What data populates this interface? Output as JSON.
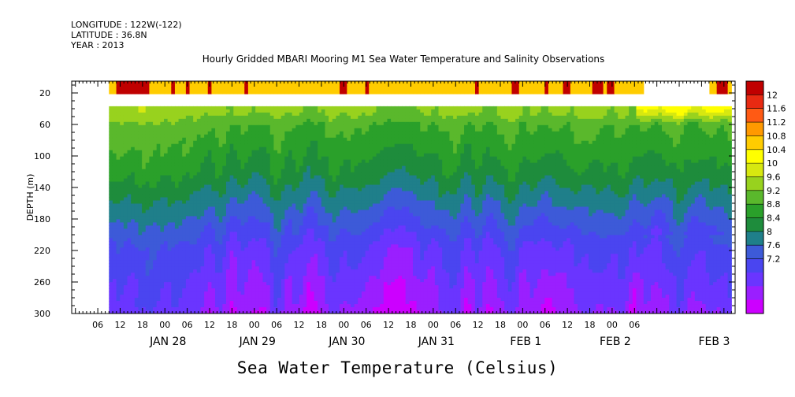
{
  "header": {
    "longitude": "LONGITUDE : 122W(-122)",
    "latitude": "LATITUDE : 36.8N",
    "year": "YEAR : 2013"
  },
  "chart_title": "Hourly Gridded MBARI Mooring M1 Sea Water Temperature and Salinity Observations",
  "footer_label": "Sea Water Temperature (Celsius)",
  "chart_data": {
    "type": "heatmap",
    "title": "Hourly Gridded MBARI Mooring M1 Sea Water Temperature and Salinity Observations",
    "xlabel": "",
    "ylabel": "DEPTH (m)",
    "ylim": [
      300,
      5
    ],
    "y_reversed": true,
    "y_ticks": [
      20,
      60,
      100,
      140,
      180,
      220,
      260,
      300
    ],
    "x_time_range": [
      "2013-01-27T00:00",
      "2013-02-03T09:00"
    ],
    "x_hour_ticks": [
      "06",
      "12",
      "18",
      "00",
      "06",
      "12",
      "18",
      "00",
      "06",
      "12",
      "18",
      "00",
      "06",
      "12",
      "18",
      "00",
      "06",
      "12",
      "18",
      "00",
      "06",
      "12",
      "18",
      "00",
      "06"
    ],
    "x_date_labels": [
      "JAN 28",
      "JAN 29",
      "JAN 30",
      "JAN 31",
      "FEB  1",
      "FEB  2",
      "FEB  3"
    ],
    "colorbar_levels": [
      7.2,
      7.6,
      8,
      8.4,
      8.8,
      9.2,
      9.6,
      10,
      10.4,
      10.8,
      11.2,
      11.6,
      12
    ],
    "colorbar_labels": [
      "12",
      "11.6",
      "11.2",
      "10.8",
      "10.4",
      "10",
      "9.6",
      "9.2",
      "8.8",
      "8.4",
      "8",
      "7.6",
      "7.2"
    ],
    "colorbar_colors": [
      "#cc00ff",
      "#9a1fff",
      "#6a35ff",
      "#4a45f0",
      "#3d5ad8",
      "#1f7f8a",
      "#1e8c3c",
      "#2aa02a",
      "#5ab82c",
      "#98d21e",
      "#d7e810",
      "#ffff00",
      "#ffcc00",
      "#ff9900",
      "#ff5a14",
      "#e82a12",
      "#c00000"
    ],
    "temperature_profile": {
      "depths_m": [
        5,
        15,
        35,
        45,
        60,
        80,
        100,
        120,
        140,
        160,
        180,
        200,
        220,
        240,
        260,
        280,
        300
      ],
      "typical_celsius": [
        11.8,
        11.7,
        null,
        10.5,
        10.1,
        9.9,
        9.7,
        9.5,
        9.2,
        8.9,
        8.6,
        8.3,
        8.0,
        7.9,
        7.7,
        7.6,
        7.4
      ]
    },
    "gap_depth_range_m": [
      20,
      35
    ],
    "gridlines": false,
    "legend": "right"
  }
}
